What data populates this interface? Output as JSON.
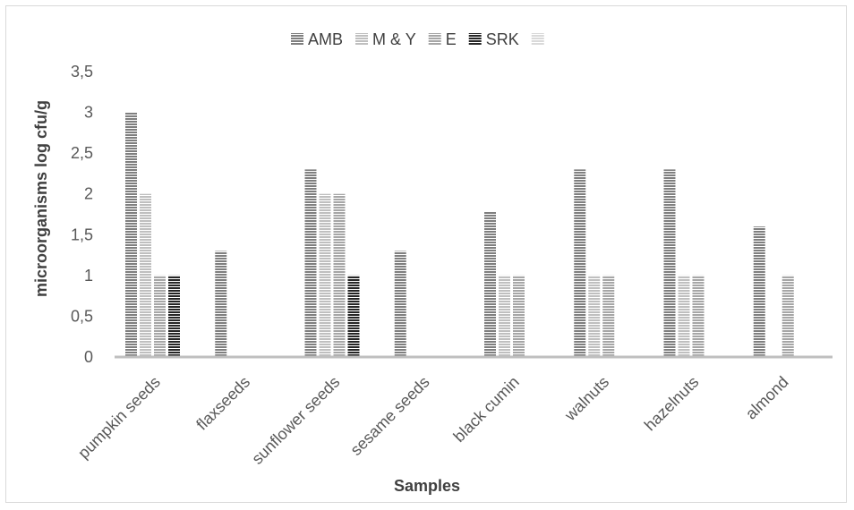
{
  "chart_data": {
    "type": "bar",
    "title": "",
    "xlabel": "Samples",
    "ylabel": "microorganisms log cfu/g",
    "ylim": [
      0,
      3.5
    ],
    "yticks": [
      "0",
      "0,5",
      "1",
      "1,5",
      "2",
      "2,5",
      "3",
      "3,5"
    ],
    "grid": false,
    "legend_position": "top",
    "categories": [
      "pumpkin seeds",
      "flaxseeds",
      "sunflower seeds",
      "sesame seeds",
      "black cumin",
      "walnuts",
      "hazelnuts",
      "almond"
    ],
    "series": [
      {
        "name": "AMB",
        "color": "#7f7f7f",
        "pattern": "horizontal-stripes",
        "values": [
          3.0,
          1.3,
          2.3,
          1.3,
          1.78,
          2.3,
          2.3,
          1.6
        ]
      },
      {
        "name": "M & Y",
        "color": "#bfbfbf",
        "pattern": "horizontal-stripes",
        "values": [
          2.0,
          0,
          2.0,
          0,
          1.0,
          1.0,
          1.0,
          0
        ]
      },
      {
        "name": "E",
        "color": "#a6a6a6",
        "pattern": "horizontal-stripes",
        "values": [
          1.0,
          0,
          2.0,
          0,
          1.0,
          1.0,
          1.0,
          1.0
        ]
      },
      {
        "name": "SRK",
        "color": "#262626",
        "pattern": "horizontal-stripes",
        "values": [
          1.0,
          0,
          1.0,
          0,
          0,
          0,
          0,
          0
        ]
      },
      {
        "name": "",
        "color": "#d9d9d9",
        "pattern": "horizontal-stripes",
        "values": [
          0,
          0,
          0,
          0,
          0,
          0,
          0,
          0
        ]
      }
    ]
  }
}
